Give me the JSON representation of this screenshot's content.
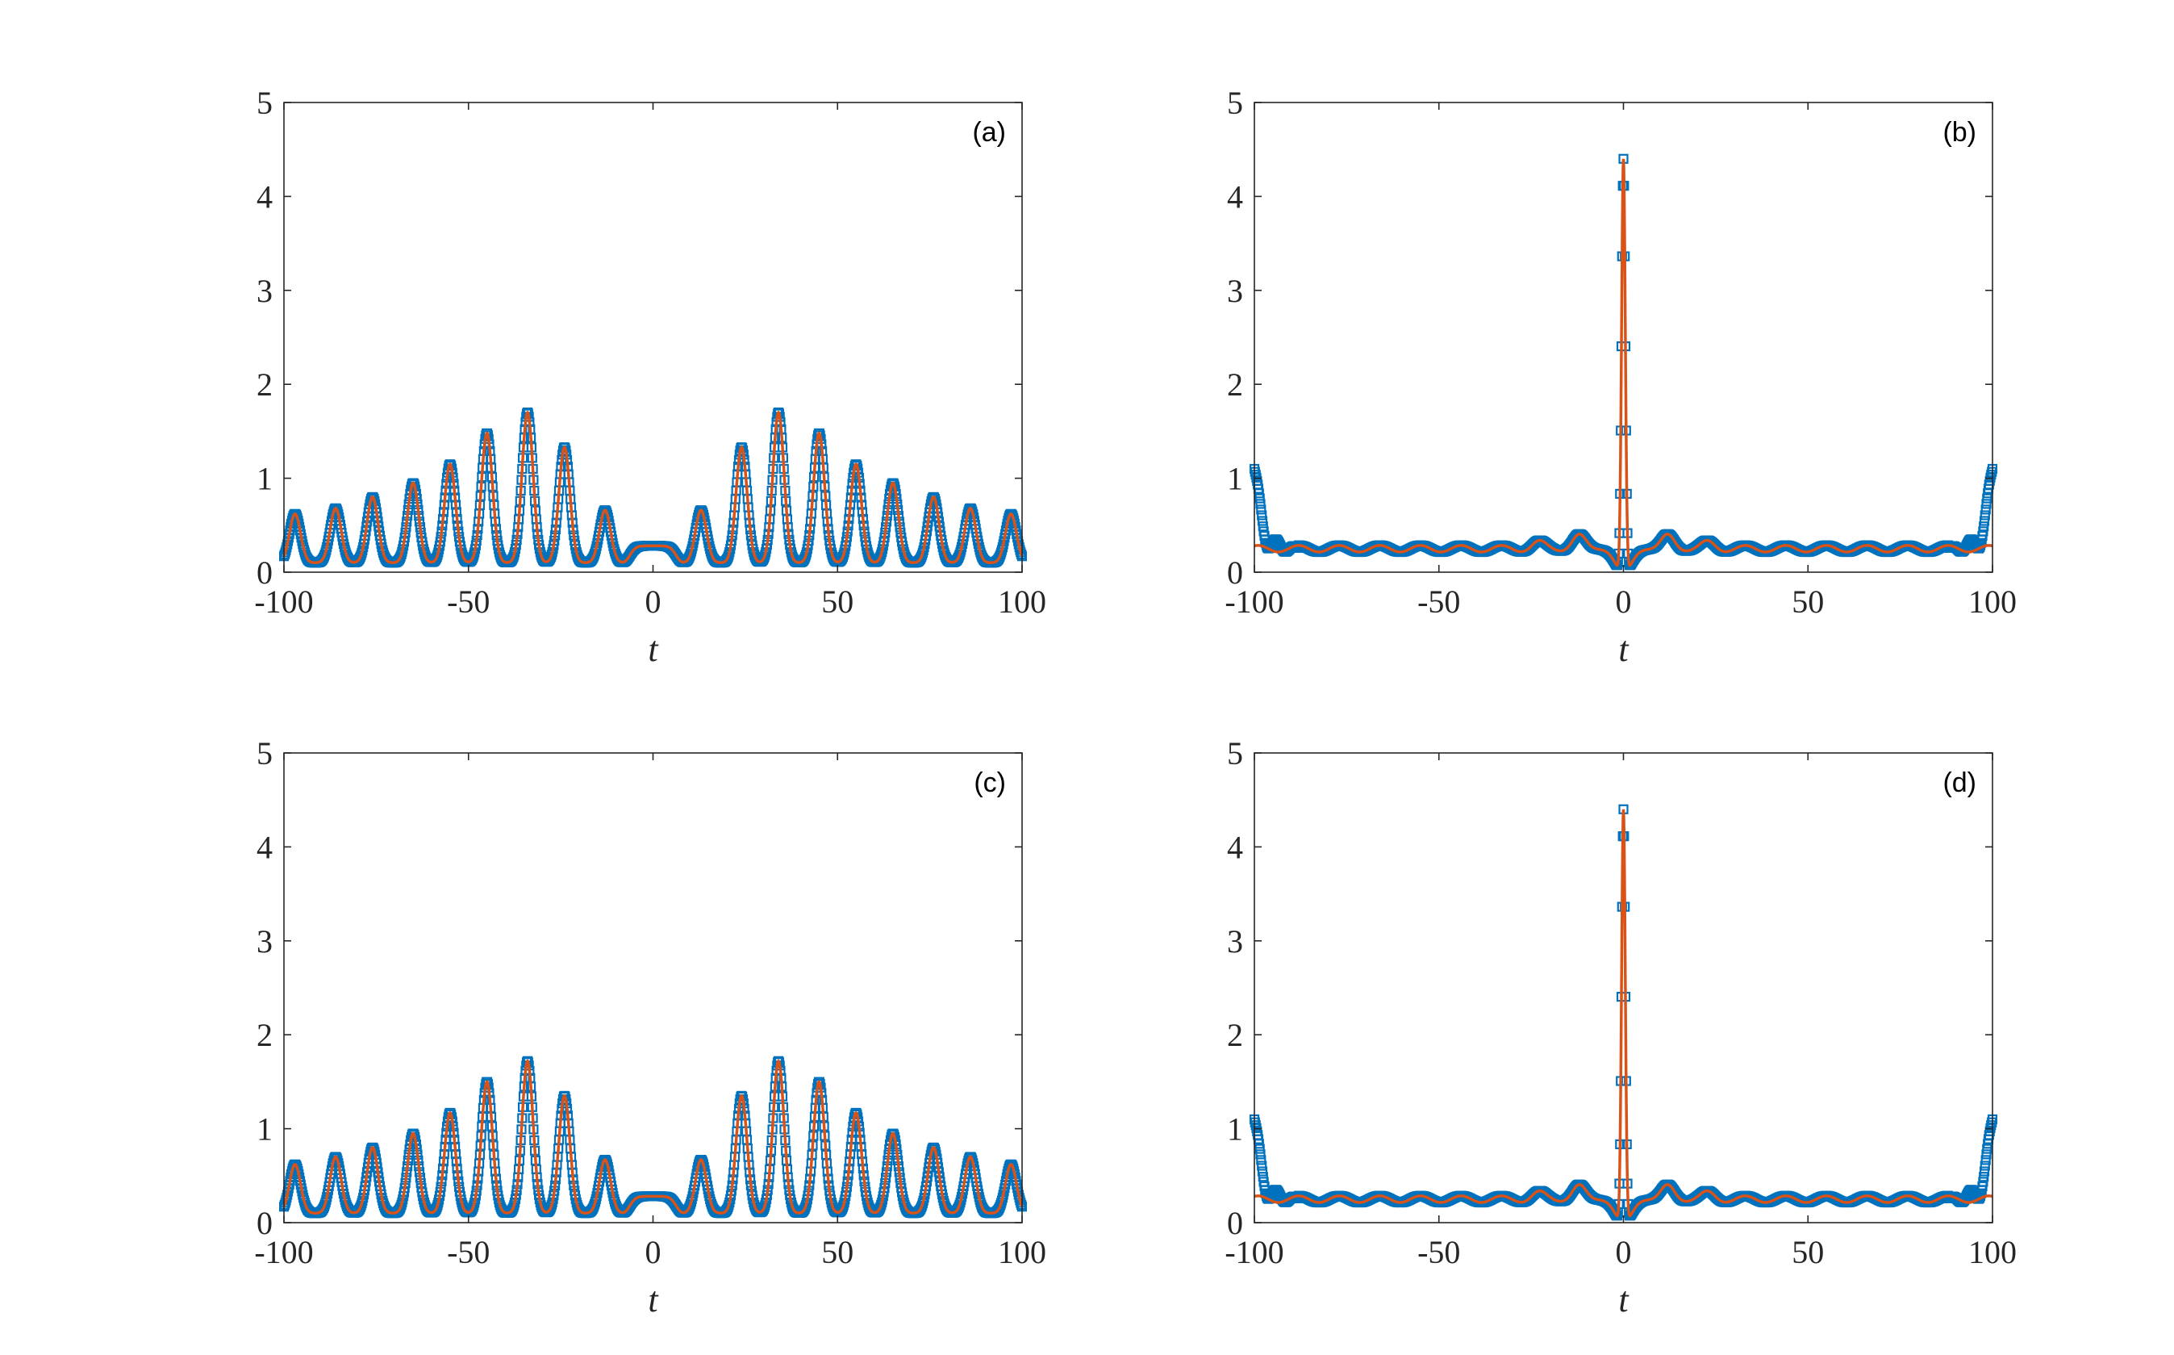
{
  "chart_data": [
    {
      "type": "line",
      "panel_label": "(a)",
      "xlabel": "t",
      "ylabel": "",
      "xlim": [
        -100,
        100
      ],
      "ylim": [
        0,
        5
      ],
      "xticks": [
        -100,
        -50,
        0,
        50,
        100
      ],
      "yticks": [
        0,
        1,
        2,
        3,
        4,
        5
      ],
      "xtick_labels": [
        "-100",
        "-50",
        "0",
        "50",
        "100"
      ],
      "ytick_labels": [
        "0",
        "1",
        "2",
        "3",
        "4",
        "5"
      ],
      "grid": false,
      "legend": "none",
      "profile": "periodic",
      "peak_positions": [
        -97,
        -86,
        -76,
        -65,
        -55,
        -45,
        -34,
        -24,
        -13,
        13,
        24,
        34,
        45,
        55,
        65,
        76,
        86,
        97
      ],
      "peak_heights": [
        0.62,
        0.68,
        0.8,
        0.95,
        1.15,
        1.48,
        1.7,
        1.33,
        0.66,
        0.66,
        1.33,
        1.7,
        1.48,
        1.15,
        0.95,
        0.8,
        0.68,
        0.62
      ],
      "baseline": 0.1,
      "center_plateau": 0.28,
      "series": [
        {
          "style": "markers",
          "marker": "square",
          "color": "#0072BD"
        },
        {
          "style": "line",
          "color": "#D95319"
        }
      ]
    },
    {
      "type": "line",
      "panel_label": "(b)",
      "xlabel": "t",
      "ylabel": "",
      "xlim": [
        -100,
        100
      ],
      "ylim": [
        0,
        5
      ],
      "xticks": [
        -100,
        -50,
        0,
        50,
        100
      ],
      "yticks": [
        0,
        1,
        2,
        3,
        4,
        5
      ],
      "xtick_labels": [
        "-100",
        "-50",
        "0",
        "50",
        "100"
      ],
      "ytick_labels": [
        "0",
        "1",
        "2",
        "3",
        "4",
        "5"
      ],
      "grid": false,
      "legend": "none",
      "profile": "rogue",
      "peak_t": 0,
      "peak_height": 4.4,
      "background": 0.25,
      "edge_value": 1.1,
      "series": [
        {
          "style": "markers",
          "marker": "square",
          "color": "#0072BD"
        },
        {
          "style": "line",
          "color": "#D95319"
        }
      ]
    },
    {
      "type": "line",
      "panel_label": "(c)",
      "xlabel": "t",
      "ylabel": "",
      "xlim": [
        -100,
        100
      ],
      "ylim": [
        0,
        5
      ],
      "xticks": [
        -100,
        -50,
        0,
        50,
        100
      ],
      "yticks": [
        0,
        1,
        2,
        3,
        4,
        5
      ],
      "xtick_labels": [
        "-100",
        "-50",
        "0",
        "50",
        "100"
      ],
      "ytick_labels": [
        "0",
        "1",
        "2",
        "3",
        "4",
        "5"
      ],
      "grid": false,
      "legend": "none",
      "profile": "periodic",
      "peak_positions": [
        -97,
        -86,
        -76,
        -65,
        -55,
        -45,
        -34,
        -24,
        -13,
        13,
        24,
        34,
        45,
        55,
        65,
        76,
        86,
        97
      ],
      "peak_heights": [
        0.62,
        0.7,
        0.8,
        0.95,
        1.17,
        1.5,
        1.72,
        1.35,
        0.67,
        0.67,
        1.35,
        1.72,
        1.5,
        1.17,
        0.95,
        0.8,
        0.7,
        0.62
      ],
      "baseline": 0.1,
      "center_plateau": 0.28,
      "series": [
        {
          "style": "markers",
          "marker": "square",
          "color": "#0072BD"
        },
        {
          "style": "line",
          "color": "#D95319"
        }
      ]
    },
    {
      "type": "line",
      "panel_label": "(d)",
      "xlabel": "t",
      "ylabel": "",
      "xlim": [
        -100,
        100
      ],
      "ylim": [
        0,
        5
      ],
      "xticks": [
        -100,
        -50,
        0,
        50,
        100
      ],
      "yticks": [
        0,
        1,
        2,
        3,
        4,
        5
      ],
      "xtick_labels": [
        "-100",
        "-50",
        "0",
        "50",
        "100"
      ],
      "ytick_labels": [
        "0",
        "1",
        "2",
        "3",
        "4",
        "5"
      ],
      "grid": false,
      "legend": "none",
      "profile": "rogue",
      "peak_t": 0,
      "peak_height": 4.4,
      "background": 0.25,
      "edge_value": 1.1,
      "series": [
        {
          "style": "markers",
          "marker": "square",
          "color": "#0072BD"
        },
        {
          "style": "line",
          "color": "#D95319"
        }
      ]
    }
  ]
}
